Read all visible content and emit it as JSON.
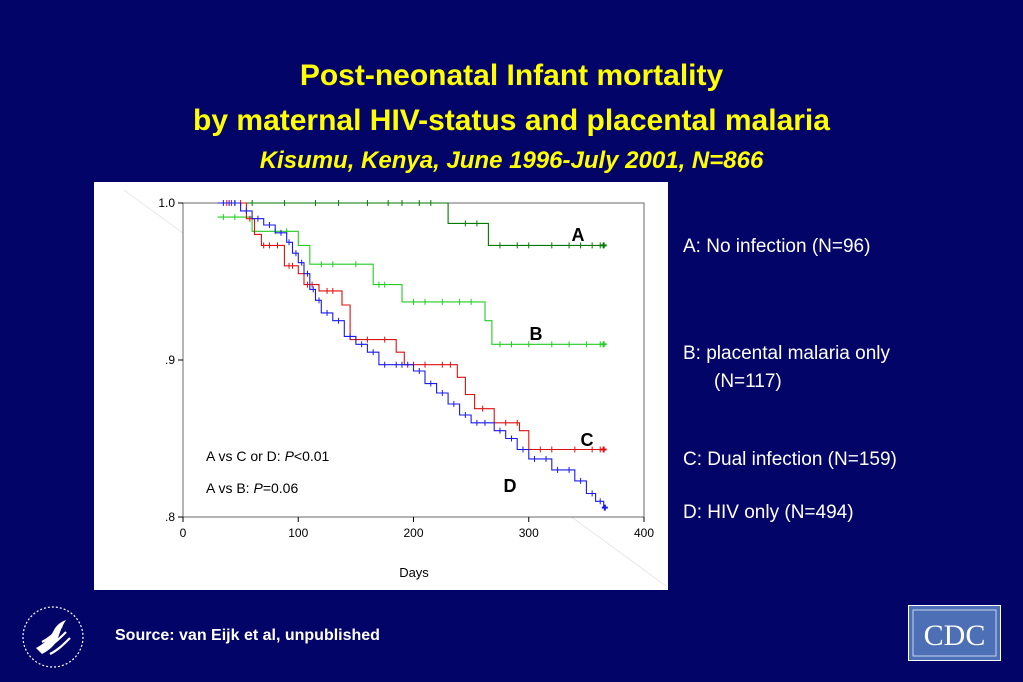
{
  "slide": {
    "title_line1": "Post-neonatal Infant mortality",
    "title_line2": "by maternal HIV-status and placental malaria",
    "subtitle": "Kisumu, Kenya, June 1996-July 2001, N=866",
    "source": "Source: van Eijk et al, unpublished",
    "colors": {
      "background": "#020467",
      "title": "#ffff00",
      "text": "#ffffff"
    }
  },
  "legend": {
    "a": "A: No infection (N=96)",
    "b_line1": "B: placental malaria only",
    "b_line2": "(N=117)",
    "c": "C: Dual infection (N=159)",
    "d": "D: HIV only (N=494)"
  },
  "logos": {
    "left": "hhs-eagle-icon",
    "right_text": "CDC"
  },
  "chart_data": {
    "type": "line",
    "subtype": "kaplan-meier survival (step)",
    "xlabel": "Days",
    "ylabel": "",
    "xlim": [
      0,
      400
    ],
    "ylim": [
      0.8,
      1.0
    ],
    "xticks": [
      0,
      100,
      200,
      300,
      400
    ],
    "xtick_labels": [
      "0",
      "100",
      "200",
      "300",
      "400"
    ],
    "yticks": [
      0.8,
      0.9,
      1.0
    ],
    "ytick_labels": [
      ".8",
      ".9",
      "1.0"
    ],
    "grid": false,
    "annotations": [
      "A vs C or D: P<0.01",
      "A vs B: P=0.06"
    ],
    "series": [
      {
        "name": "A",
        "color": "#007a00",
        "steps": [
          [
            30,
            1.0
          ],
          [
            230,
            0.987
          ],
          [
            265,
            0.973
          ],
          [
            365,
            0.973
          ]
        ],
        "censor_x": [
          45,
          60,
          88,
          115,
          135,
          160,
          178,
          190,
          205,
          215,
          245,
          255,
          275,
          290,
          300,
          320,
          335,
          345,
          355,
          362
        ]
      },
      {
        "name": "B",
        "color": "#22cc22",
        "steps": [
          [
            30,
            0.991
          ],
          [
            55,
            0.991
          ],
          [
            60,
            0.982
          ],
          [
            100,
            0.973
          ],
          [
            110,
            0.961
          ],
          [
            165,
            0.948
          ],
          [
            190,
            0.937
          ],
          [
            262,
            0.925
          ],
          [
            268,
            0.91
          ],
          [
            365,
            0.91
          ]
        ],
        "censor_x": [
          35,
          45,
          80,
          90,
          120,
          130,
          150,
          170,
          175,
          200,
          210,
          225,
          240,
          250,
          275,
          285,
          300,
          320,
          335,
          350,
          362
        ]
      },
      {
        "name": "C",
        "color": "#dd1111",
        "steps": [
          [
            30,
            1.0
          ],
          [
            55,
            0.99
          ],
          [
            62,
            0.98
          ],
          [
            68,
            0.973
          ],
          [
            88,
            0.96
          ],
          [
            100,
            0.955
          ],
          [
            105,
            0.948
          ],
          [
            118,
            0.944
          ],
          [
            138,
            0.935
          ],
          [
            145,
            0.913
          ],
          [
            185,
            0.905
          ],
          [
            192,
            0.897
          ],
          [
            238,
            0.889
          ],
          [
            245,
            0.878
          ],
          [
            253,
            0.869
          ],
          [
            270,
            0.86
          ],
          [
            292,
            0.855
          ],
          [
            300,
            0.843
          ],
          [
            365,
            0.843
          ]
        ],
        "censor_x": [
          38,
          42,
          50,
          58,
          70,
          75,
          82,
          92,
          95,
          108,
          112,
          125,
          130,
          150,
          160,
          175,
          200,
          210,
          225,
          232,
          260,
          280,
          290,
          310,
          320,
          340,
          355,
          362
        ]
      },
      {
        "name": "D",
        "color": "#1a1aee",
        "steps": [
          [
            30,
            1.0
          ],
          [
            50,
            0.995
          ],
          [
            60,
            0.99
          ],
          [
            70,
            0.986
          ],
          [
            80,
            0.981
          ],
          [
            90,
            0.975
          ],
          [
            95,
            0.968
          ],
          [
            100,
            0.962
          ],
          [
            105,
            0.955
          ],
          [
            110,
            0.945
          ],
          [
            115,
            0.938
          ],
          [
            120,
            0.93
          ],
          [
            130,
            0.925
          ],
          [
            140,
            0.915
          ],
          [
            150,
            0.91
          ],
          [
            160,
            0.905
          ],
          [
            170,
            0.897
          ],
          [
            200,
            0.893
          ],
          [
            210,
            0.885
          ],
          [
            220,
            0.879
          ],
          [
            230,
            0.872
          ],
          [
            240,
            0.865
          ],
          [
            250,
            0.86
          ],
          [
            270,
            0.855
          ],
          [
            280,
            0.85
          ],
          [
            290,
            0.843
          ],
          [
            300,
            0.837
          ],
          [
            320,
            0.83
          ],
          [
            340,
            0.823
          ],
          [
            350,
            0.815
          ],
          [
            358,
            0.81
          ],
          [
            365,
            0.806
          ],
          [
            366,
            0.806
          ]
        ],
        "censor_x": [
          35,
          40,
          45,
          55,
          65,
          75,
          85,
          92,
          98,
          103,
          108,
          113,
          118,
          125,
          135,
          145,
          155,
          165,
          175,
          185,
          190,
          195,
          205,
          215,
          225,
          235,
          245,
          255,
          262,
          275,
          285,
          295,
          305,
          315,
          325,
          335,
          345,
          355,
          362
        ]
      }
    ],
    "curve_labels": [
      "A",
      "B",
      "C",
      "D"
    ]
  }
}
